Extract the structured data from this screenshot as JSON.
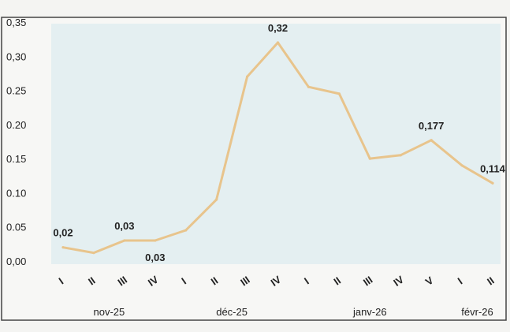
{
  "chart_data": {
    "type": "line",
    "title": "",
    "xlabel": "",
    "ylabel": "",
    "ylim": [
      0,
      0.35
    ],
    "y_ticks": [
      "0,00",
      "0.05",
      "0.10",
      "0.15",
      "0.20",
      "0.25",
      "0,30",
      "0,35"
    ],
    "y_tick_values": [
      0,
      0.05,
      0.1,
      0.15,
      0.2,
      0.25,
      0.3,
      0.35
    ],
    "x_tick_labels": [
      "I",
      "II",
      "III",
      "IV",
      "I",
      "II",
      "III",
      "IV",
      "I",
      "II",
      "III",
      "IV",
      "V",
      "I",
      "II"
    ],
    "month_labels": [
      {
        "label": "nov-25",
        "from": 0,
        "to": 3
      },
      {
        "label": "déc-25",
        "from": 4,
        "to": 7
      },
      {
        "label": "janv-26",
        "from": 8,
        "to": 12
      },
      {
        "label": "févr-26",
        "from": 13,
        "to": 14
      }
    ],
    "grid": false,
    "legend": "none",
    "series": [
      {
        "values": [
          0.02,
          0.012,
          0.03,
          0.03,
          0.045,
          0.09,
          0.27,
          0.32,
          0.255,
          0.245,
          0.15,
          0.155,
          0.177,
          0.14,
          0.114
        ],
        "color": "#e8c48c"
      }
    ],
    "data_labels": [
      {
        "index": 0,
        "text": "0,02",
        "position": "above"
      },
      {
        "index": 2,
        "text": "0,03",
        "position": "above"
      },
      {
        "index": 3,
        "text": "0,03",
        "position": "below"
      },
      {
        "index": 7,
        "text": "0,32",
        "position": "above"
      },
      {
        "index": 12,
        "text": "0,177",
        "position": "above"
      },
      {
        "index": 14,
        "text": "0,114",
        "position": "above"
      }
    ],
    "colors": {
      "plot_background": "#e4eff1",
      "line": "#e8c48c",
      "frame": "#444444",
      "text": "#222222"
    }
  }
}
